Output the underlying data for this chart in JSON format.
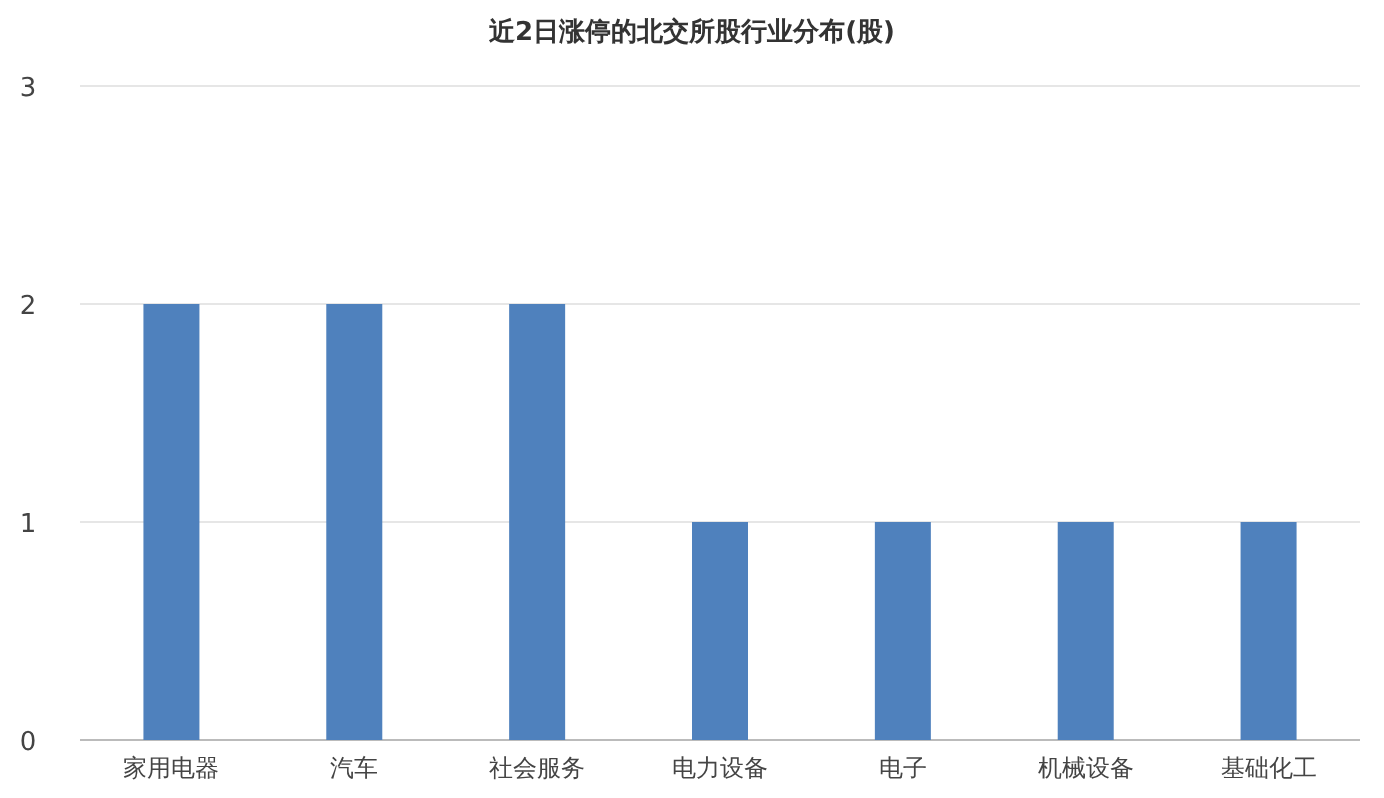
{
  "chart_data": {
    "type": "bar",
    "title": "近2日涨停的北交所股行业分布(股)",
    "categories": [
      "家用电器",
      "汽车",
      "社会服务",
      "电力设备",
      "电子",
      "机械设备",
      "基础化工"
    ],
    "values": [
      2,
      2,
      2,
      1,
      1,
      1,
      1
    ],
    "color": "#4f81bd",
    "ylim": [
      0,
      3
    ],
    "yticks": [
      0,
      1,
      2,
      3
    ],
    "grid": "y"
  }
}
